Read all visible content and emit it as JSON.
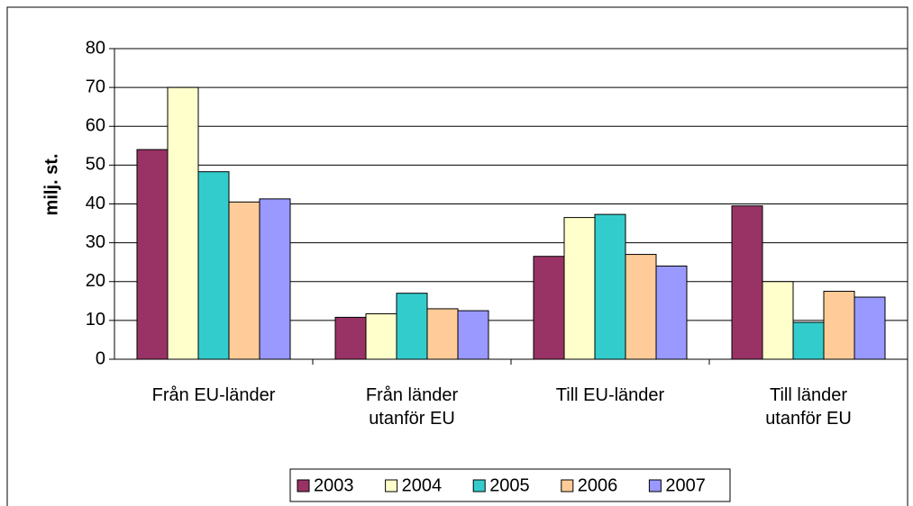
{
  "chart_data": {
    "type": "bar",
    "y_label": "milj. st.",
    "categories": [
      "Från EU-länder",
      "Från länder\nutanför EU",
      "Till EU-länder",
      "Till länder\nutanför EU"
    ],
    "series": [
      {
        "name": "2003",
        "color": "#993366",
        "values": [
          54,
          10.8,
          26.5,
          39.5
        ]
      },
      {
        "name": "2004",
        "color": "#FFFFCC",
        "values": [
          70,
          11.7,
          36.5,
          20
        ]
      },
      {
        "name": "2005",
        "color": "#33CCCC",
        "values": [
          48.3,
          17,
          37.3,
          9.5
        ]
      },
      {
        "name": "2006",
        "color": "#FFCC99",
        "values": [
          40.5,
          13,
          27,
          17.5
        ]
      },
      {
        "name": "2007",
        "color": "#9999FF",
        "values": [
          41.3,
          12.5,
          24,
          16
        ]
      }
    ],
    "ylim": [
      0,
      80
    ],
    "yticks": [
      0,
      10,
      20,
      30,
      40,
      50,
      60,
      70,
      80
    ],
    "grid": true,
    "legend": "bottom"
  }
}
